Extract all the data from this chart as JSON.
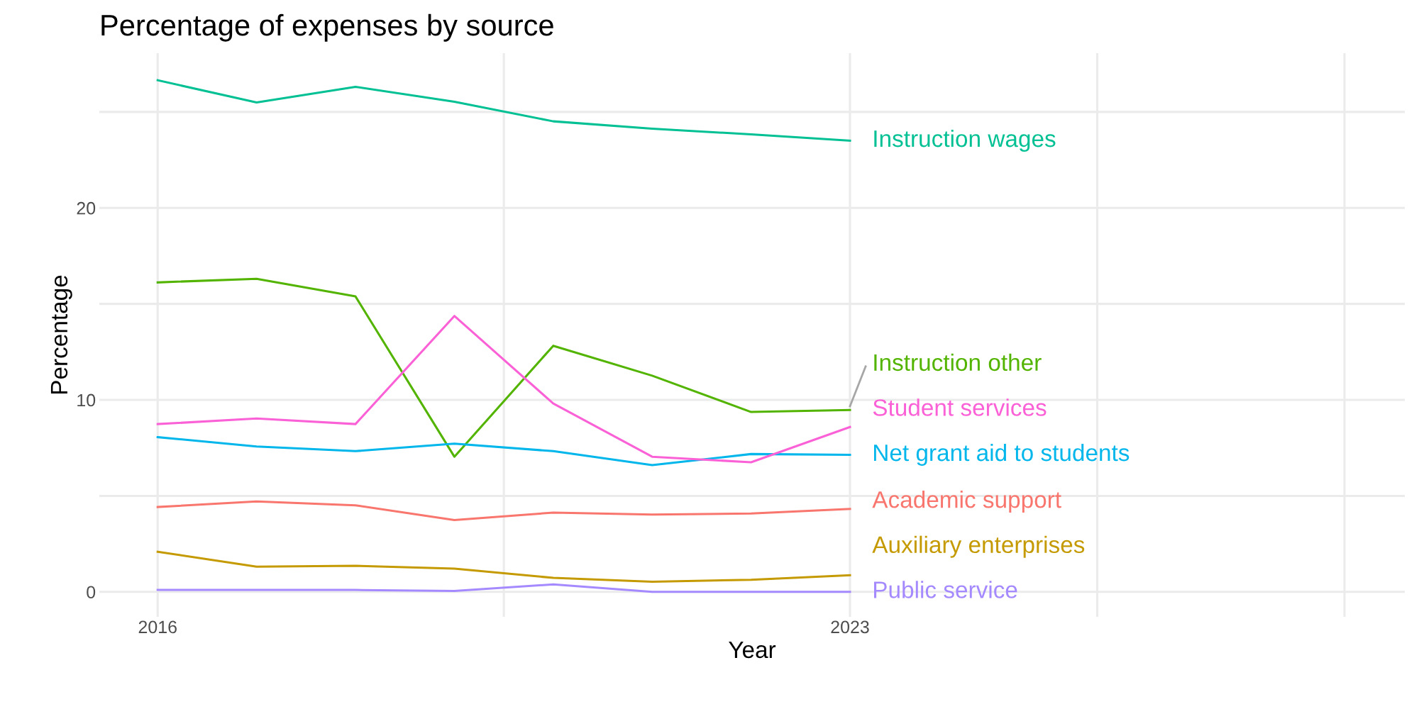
{
  "chart_data": {
    "type": "line",
    "title": "Percentage of expenses by source",
    "xlabel": "Year",
    "ylabel": "Percentage",
    "x": [
      2016,
      2017,
      2018,
      2019,
      2020,
      2021,
      2022,
      2023
    ],
    "xlim": [
      2015.41,
      2028.61
    ],
    "xticks": [
      2016,
      {
        "value": 2019.5,
        "label": null
      },
      2023,
      {
        "value": 2025.5,
        "label": null
      },
      {
        "value": 2028,
        "label": null
      }
    ],
    "ylim": [
      -1.3,
      28.06
    ],
    "yticks": [
      0,
      {
        "value": 5,
        "label": null
      },
      10,
      {
        "value": 15,
        "label": null
      },
      20,
      {
        "value": 25,
        "label": null
      }
    ],
    "grid": true,
    "legend": false,
    "line_style": "solid",
    "marker": "none",
    "series": [
      {
        "name": "Academic support",
        "color": "#F8766D",
        "values": [
          4.42,
          4.71,
          4.51,
          3.74,
          4.13,
          4.03,
          4.08,
          4.32
        ]
      },
      {
        "name": "Auxiliary enterprises",
        "color": "#C49A00",
        "values": [
          2.09,
          1.31,
          1.36,
          1.21,
          0.73,
          0.53,
          0.63,
          0.87
        ]
      },
      {
        "name": "Instruction other",
        "color": "#53B400",
        "values": [
          16.12,
          16.31,
          15.39,
          7.04,
          12.82,
          11.26,
          9.37,
          9.47
        ]
      },
      {
        "name": "Instruction wages",
        "color": "#00C094",
        "values": [
          26.65,
          25.49,
          26.31,
          25.53,
          24.51,
          24.13,
          23.83,
          23.5
        ]
      },
      {
        "name": "Net grant aid to students",
        "color": "#00B6EB",
        "values": [
          8.06,
          7.57,
          7.33,
          7.72,
          7.33,
          6.6,
          7.18,
          7.14
        ]
      },
      {
        "name": "Public service",
        "color": "#A58AFF",
        "values": [
          0.1,
          0.1,
          0.1,
          0.05,
          0.39,
          0,
          0,
          0
        ]
      },
      {
        "name": "Student services",
        "color": "#FB61D7",
        "values": [
          8.74,
          9.03,
          8.74,
          14.37,
          9.81,
          7.04,
          6.75,
          8.59
        ]
      }
    ]
  }
}
